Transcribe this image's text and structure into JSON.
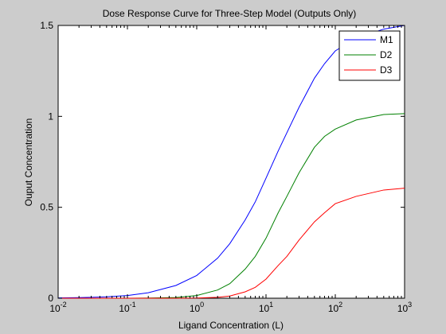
{
  "chart_data": {
    "type": "line",
    "title": "Dose Response Curve for Three-Step Model (Outputs Only)",
    "xlabel": "Ligand Concentration (L)",
    "ylabel": "Ouput Concentration",
    "xscale": "log",
    "xlim": [
      0.01,
      1000
    ],
    "ylim": [
      0,
      1.5
    ],
    "x_ticks": [
      {
        "value": 0.01,
        "base": "10",
        "exp": "-2"
      },
      {
        "value": 0.1,
        "base": "10",
        "exp": "-1"
      },
      {
        "value": 1,
        "base": "10",
        "exp": "0"
      },
      {
        "value": 10,
        "base": "10",
        "exp": "1"
      },
      {
        "value": 100,
        "base": "10",
        "exp": "2"
      },
      {
        "value": 1000,
        "base": "10",
        "exp": "3"
      }
    ],
    "y_ticks": [
      {
        "value": 0,
        "label": "0"
      },
      {
        "value": 0.5,
        "label": "0.5"
      },
      {
        "value": 1,
        "label": "1"
      },
      {
        "value": 1.5,
        "label": "1.5"
      }
    ],
    "grid": false,
    "legend_position": "top-right",
    "x": [
      0.01,
      0.02,
      0.05,
      0.1,
      0.2,
      0.5,
      1,
      2,
      3,
      5,
      7,
      10,
      15,
      20,
      30,
      50,
      70,
      100,
      200,
      500,
      1000
    ],
    "series": [
      {
        "name": "M1",
        "color": "#0000ff",
        "values": [
          0.0015,
          0.003,
          0.0075,
          0.015,
          0.03,
          0.07,
          0.125,
          0.22,
          0.3,
          0.43,
          0.53,
          0.66,
          0.81,
          0.91,
          1.05,
          1.21,
          1.29,
          1.36,
          1.43,
          1.48,
          1.5
        ]
      },
      {
        "name": "D2",
        "color": "#008000",
        "values": [
          0,
          0,
          0,
          0.0002,
          0.001,
          0.004,
          0.015,
          0.045,
          0.08,
          0.16,
          0.23,
          0.33,
          0.47,
          0.56,
          0.69,
          0.83,
          0.89,
          0.93,
          0.98,
          1.01,
          1.015
        ]
      },
      {
        "name": "D3",
        "color": "#ff0000",
        "values": [
          0,
          0,
          0,
          0,
          0,
          0.0002,
          0.001,
          0.005,
          0.012,
          0.035,
          0.06,
          0.105,
          0.18,
          0.23,
          0.32,
          0.42,
          0.47,
          0.52,
          0.56,
          0.595,
          0.605
        ]
      }
    ]
  }
}
